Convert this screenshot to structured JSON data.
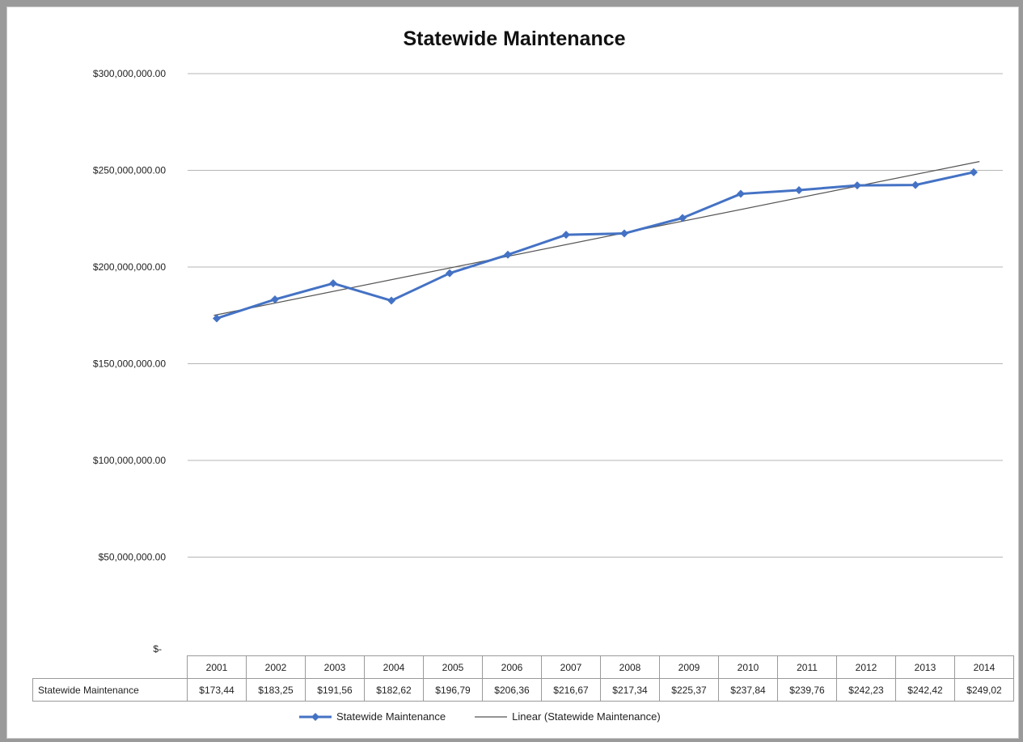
{
  "chart_data": {
    "type": "line",
    "title": "Statewide Maintenance",
    "categories": [
      "2001",
      "2002",
      "2003",
      "2004",
      "2005",
      "2006",
      "2007",
      "2008",
      "2009",
      "2010",
      "2011",
      "2012",
      "2013",
      "2014"
    ],
    "series": [
      {
        "name": "Statewide Maintenance",
        "color": "#4472c4",
        "values": [
          173440000,
          183250000,
          191560000,
          182620000,
          196790000,
          206360000,
          216670000,
          217340000,
          225370000,
          237840000,
          239760000,
          242230000,
          242420000,
          249020000
        ],
        "table_labels": [
          "$173,44",
          "$183,25",
          "$191,56",
          "$182,62",
          "$196,79",
          "$206,36",
          "$216,67",
          "$217,34",
          "$225,37",
          "$237,84",
          "$239,76",
          "$242,23",
          "$242,42",
          "$249,02"
        ]
      },
      {
        "name": "Linear (Statewide Maintenance)",
        "color": "#555555",
        "type": "trendline"
      }
    ],
    "ylim": [
      0,
      300000000
    ],
    "y_tick_values": [
      0,
      50000000,
      100000000,
      150000000,
      200000000,
      250000000,
      300000000
    ],
    "y_tick_labels": [
      "$-",
      "$50,000,000.00",
      "$100,000,000.00",
      "$150,000,000.00",
      "$200,000,000.00",
      "$250,000,000.00",
      "$300,000,000.00"
    ],
    "xlabel": "",
    "ylabel": "",
    "grid": true,
    "legend": "bottom",
    "data_table": true
  }
}
